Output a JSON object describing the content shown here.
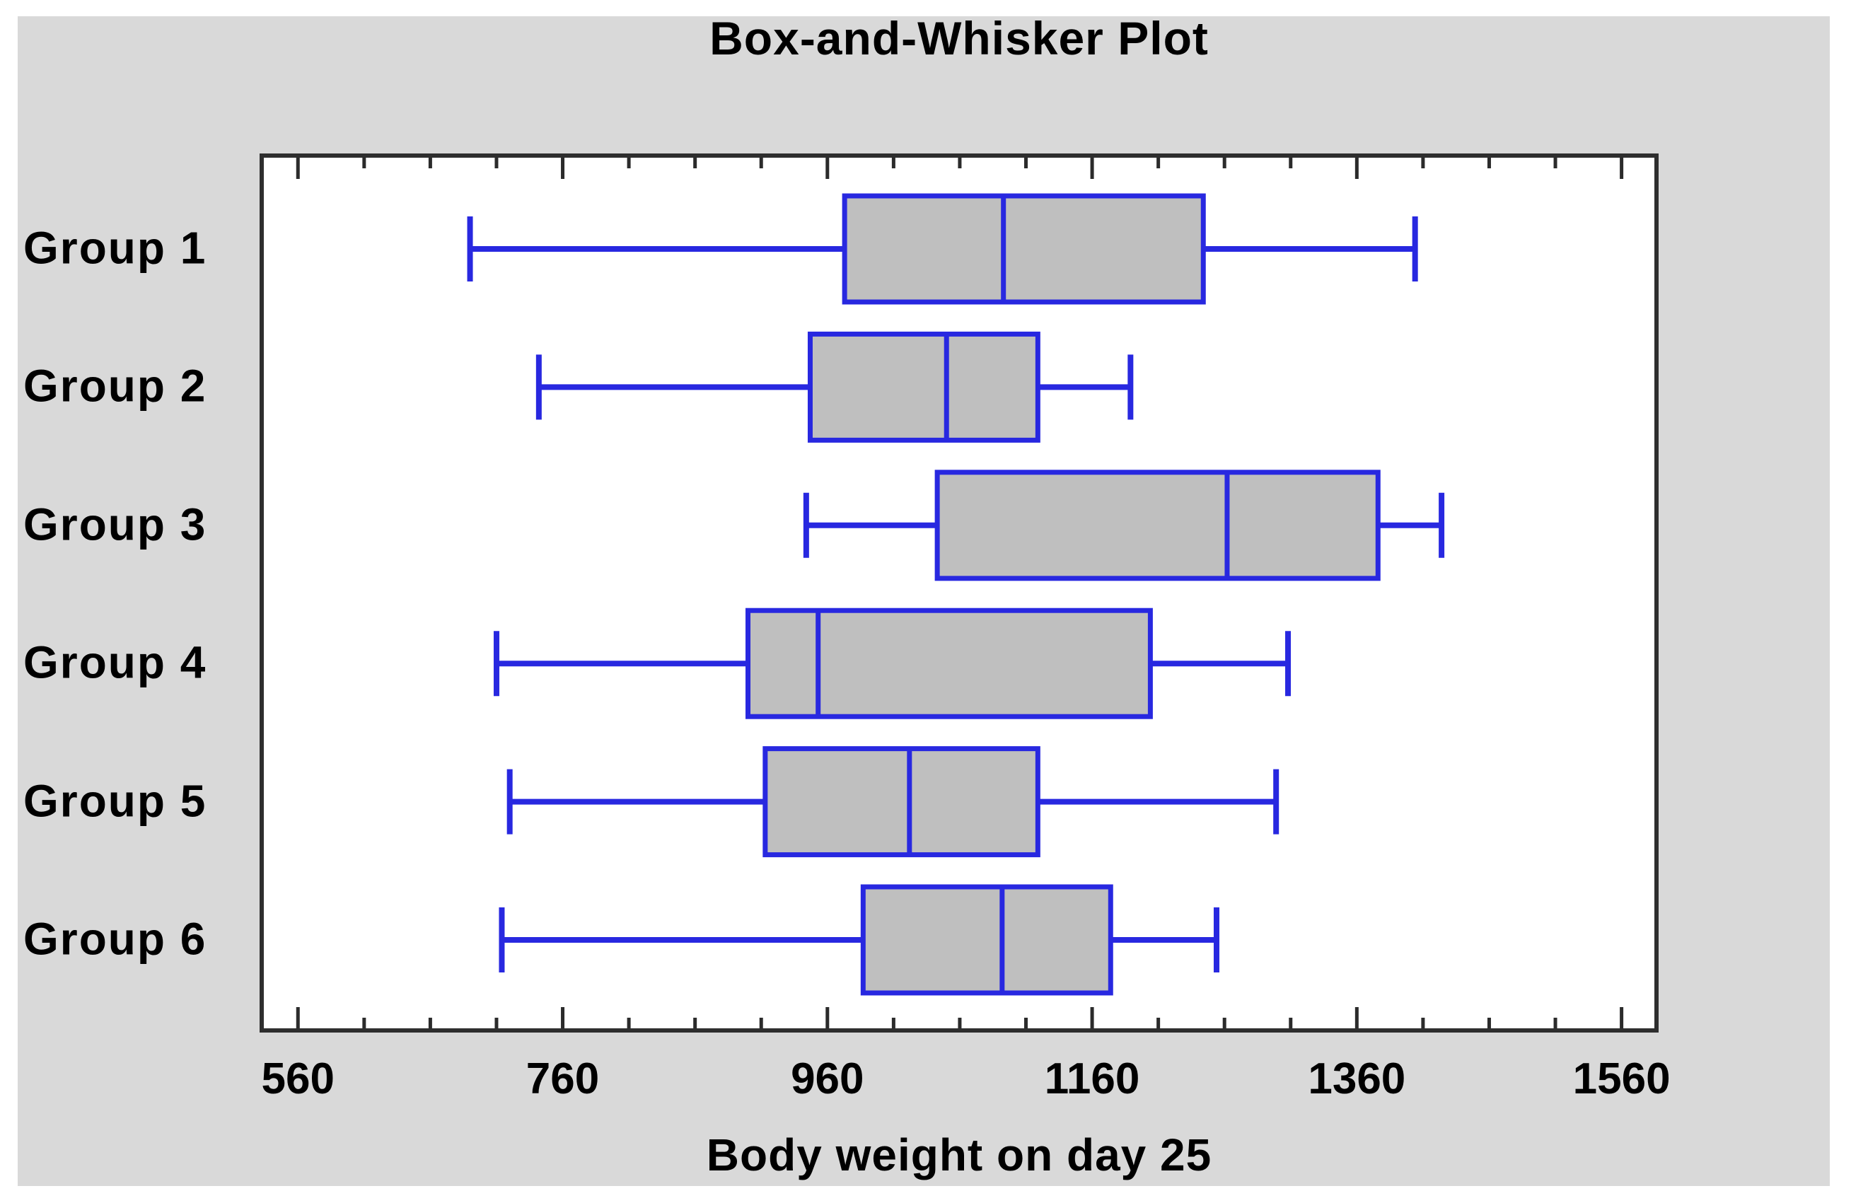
{
  "chart_data": {
    "type": "boxplot",
    "orientation": "horizontal",
    "title": "Box-and-Whisker Plot",
    "xlabel": "Body weight on day 25",
    "categories": [
      "Group 1",
      "Group 2",
      "Group 3",
      "Group 4",
      "Group 5",
      "Group 6"
    ],
    "boxes": [
      {
        "label": "Group 1",
        "min": 690,
        "q1": 973,
        "median": 1093,
        "q3": 1244,
        "max": 1404
      },
      {
        "label": "Group 2",
        "min": 742,
        "q1": 947,
        "median": 1050,
        "q3": 1119,
        "max": 1189
      },
      {
        "label": "Group 3",
        "min": 944,
        "q1": 1043,
        "median": 1262,
        "q3": 1376,
        "max": 1424
      },
      {
        "label": "Group 4",
        "min": 710,
        "q1": 900,
        "median": 953,
        "q3": 1204,
        "max": 1308
      },
      {
        "label": "Group 5",
        "min": 720,
        "q1": 913,
        "median": 1022,
        "q3": 1119,
        "max": 1299
      },
      {
        "label": "Group 6",
        "min": 714,
        "q1": 987,
        "median": 1092,
        "q3": 1174,
        "max": 1254
      }
    ],
    "xlim": [
      531,
      1588
    ],
    "x_major_ticks": [
      560,
      760,
      960,
      1160,
      1360,
      1560
    ],
    "x_major_tick_labels": [
      "560",
      "760",
      "960",
      "1160",
      "1360",
      "1560"
    ],
    "x_minor_tick_step": 50,
    "grid": false,
    "legend": "none",
    "colors": {
      "box_border": "#2828e0",
      "box_fill": "#bfbfbf",
      "frame": "#2e2e2e",
      "tick": "#2b2b2b",
      "panel_bg": "#d9d9d9",
      "plot_bg": "#ffffff",
      "text": "#000000"
    }
  }
}
